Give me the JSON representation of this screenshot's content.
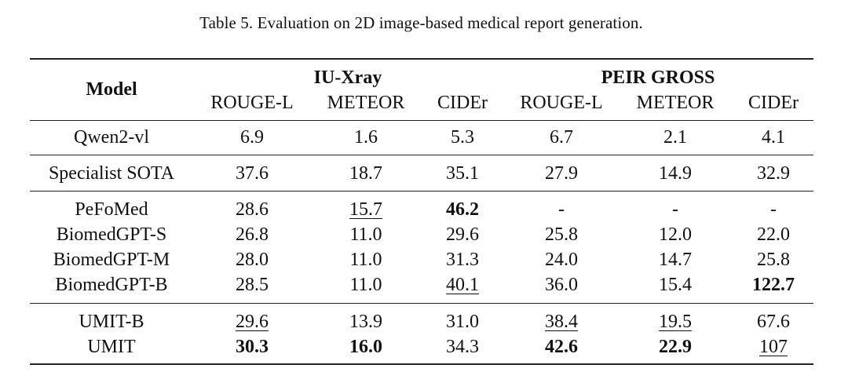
{
  "caption": "Table 5. Evaluation on 2D image-based medical report generation.",
  "header": {
    "model_label": "Model",
    "groups": [
      "IU-Xray",
      "PEIR GROSS"
    ],
    "metrics": [
      "ROUGE-L",
      "METEOR",
      "CIDEr",
      "ROUGE-L",
      "METEOR",
      "CIDEr"
    ]
  },
  "rows": [
    {
      "model": "Qwen2-vl",
      "values": [
        "6.9",
        "1.6",
        "5.3",
        "6.7",
        "2.1",
        "4.1"
      ],
      "bold": [],
      "underline": []
    },
    {
      "model": "Specialist SOTA",
      "values": [
        "37.6",
        "18.7",
        "35.1",
        "27.9",
        "14.9",
        "32.9"
      ],
      "bold": [],
      "underline": []
    },
    {
      "model": "PeFoMed",
      "values": [
        "28.6",
        "15.7",
        "46.2",
        "-",
        "-",
        "-"
      ],
      "bold": [
        2
      ],
      "underline": [
        1
      ]
    },
    {
      "model": "BiomedGPT-S",
      "values": [
        "26.8",
        "11.0",
        "29.6",
        "25.8",
        "12.0",
        "22.0"
      ],
      "bold": [],
      "underline": []
    },
    {
      "model": "BiomedGPT-M",
      "values": [
        "28.0",
        "11.0",
        "31.3",
        "24.0",
        "14.7",
        "25.8"
      ],
      "bold": [],
      "underline": []
    },
    {
      "model": "BiomedGPT-B",
      "values": [
        "28.5",
        "11.0",
        "40.1",
        "36.0",
        "15.4",
        "122.7"
      ],
      "bold": [
        5
      ],
      "underline": [
        2
      ]
    },
    {
      "model": "UMIT-B",
      "values": [
        "29.6",
        "13.9",
        "31.0",
        "38.4",
        "19.5",
        "67.6"
      ],
      "bold": [],
      "underline": [
        0,
        3,
        4
      ]
    },
    {
      "model": "UMIT",
      "values": [
        "30.3",
        "16.0",
        "34.3",
        "42.6",
        "22.9",
        "107"
      ],
      "bold": [
        0,
        1,
        3,
        4
      ],
      "underline": [
        5
      ]
    }
  ]
}
